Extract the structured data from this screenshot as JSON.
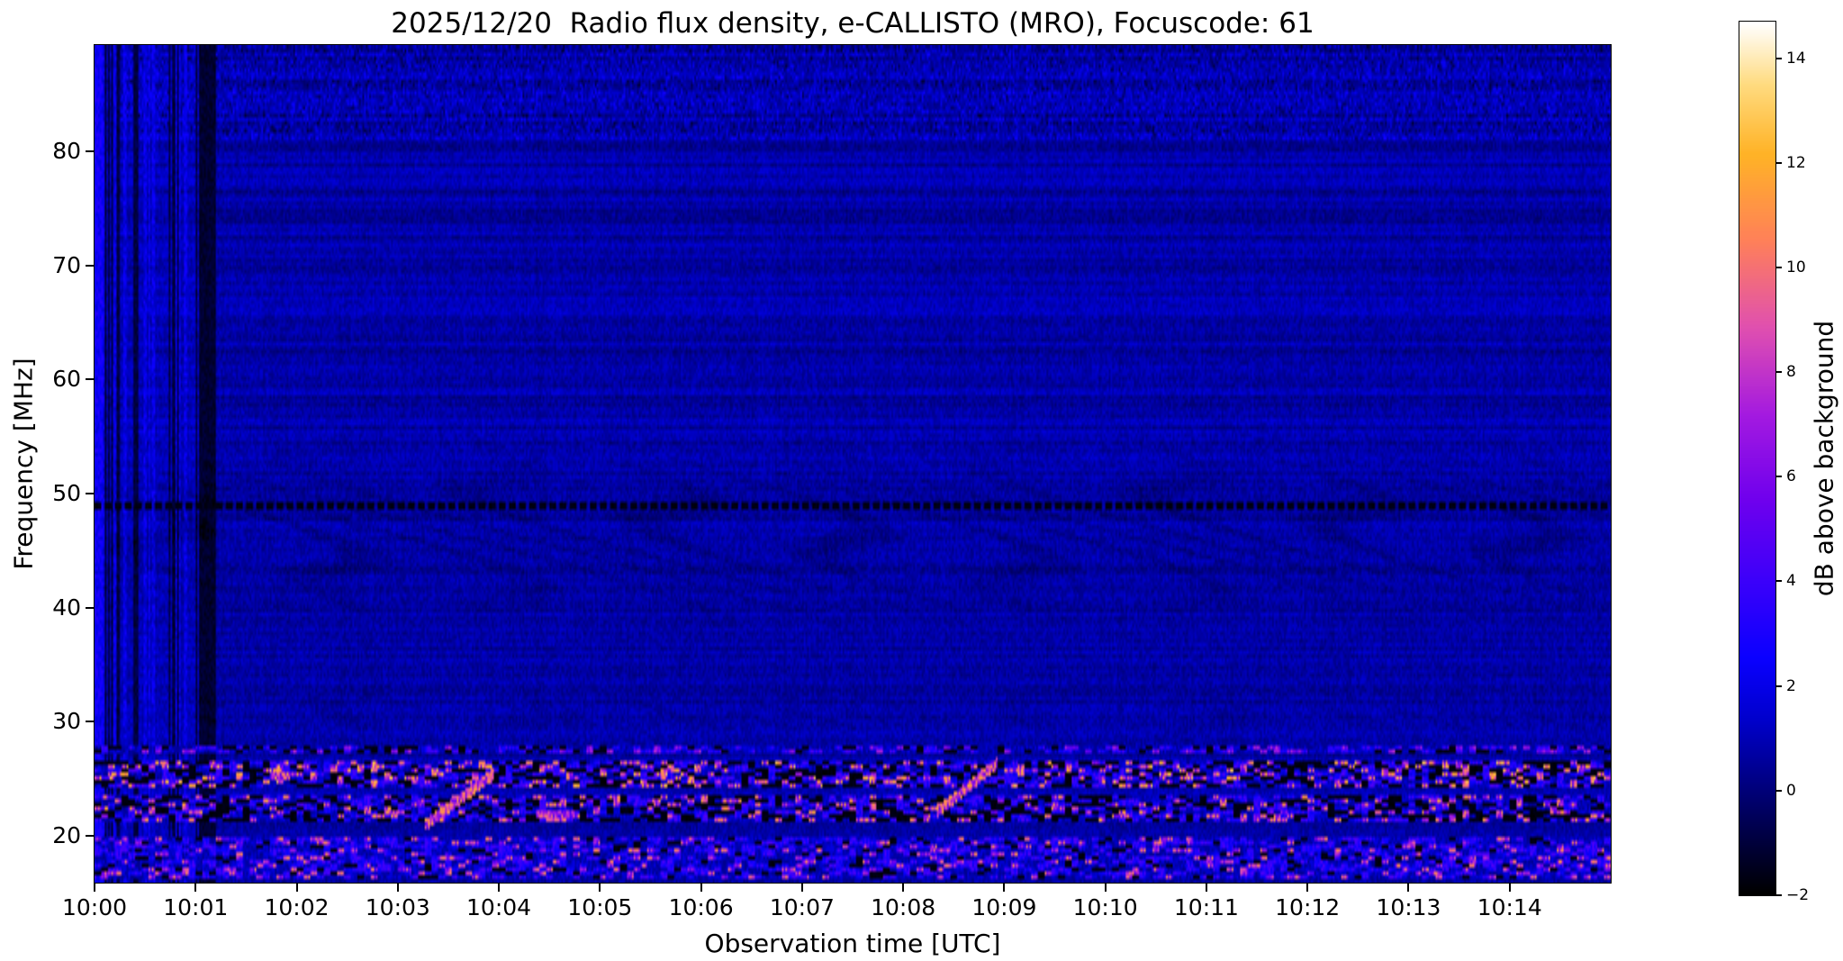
{
  "chart_data": {
    "type": "heatmap",
    "title": "2025/12/20  Radio flux density, e-CALLISTO (MRO), Focuscode: 61",
    "xlabel": "Observation time [UTC]",
    "ylabel": "Frequency [MHz]",
    "colorbar_label": "dB above background",
    "x_range_seconds": [
      0,
      900
    ],
    "x_ticks": [
      {
        "label": "10:00",
        "seconds": 0
      },
      {
        "label": "10:01",
        "seconds": 60
      },
      {
        "label": "10:02",
        "seconds": 120
      },
      {
        "label": "10:03",
        "seconds": 180
      },
      {
        "label": "10:04",
        "seconds": 240
      },
      {
        "label": "10:05",
        "seconds": 300
      },
      {
        "label": "10:06",
        "seconds": 360
      },
      {
        "label": "10:07",
        "seconds": 420
      },
      {
        "label": "10:08",
        "seconds": 480
      },
      {
        "label": "10:09",
        "seconds": 540
      },
      {
        "label": "10:10",
        "seconds": 600
      },
      {
        "label": "10:11",
        "seconds": 660
      },
      {
        "label": "10:12",
        "seconds": 720
      },
      {
        "label": "10:13",
        "seconds": 780
      },
      {
        "label": "10:14",
        "seconds": 840
      }
    ],
    "y_range_mhz": [
      15.9,
      89.3
    ],
    "y_ticks": [
      {
        "label": "20",
        "value": 20
      },
      {
        "label": "30",
        "value": 30
      },
      {
        "label": "40",
        "value": 40
      },
      {
        "label": "50",
        "value": 50
      },
      {
        "label": "60",
        "value": 60
      },
      {
        "label": "70",
        "value": 70
      },
      {
        "label": "80",
        "value": 80
      }
    ],
    "colorbar_range_db": [
      -2,
      14.7
    ],
    "colorbar_ticks": [
      {
        "label": "14",
        "value": 14
      },
      {
        "label": "12",
        "value": 12
      },
      {
        "label": "10",
        "value": 10
      },
      {
        "label": "8",
        "value": 8
      },
      {
        "label": "6",
        "value": 6
      },
      {
        "label": "4",
        "value": 4
      },
      {
        "label": "2",
        "value": 2
      },
      {
        "label": "0",
        "value": 0
      },
      {
        "label": "−2",
        "value": -2
      }
    ],
    "colormap": {
      "name": "gnuplot2-like",
      "stops": [
        {
          "x": 0.0,
          "color": "#000000"
        },
        {
          "x": 0.1,
          "color": "#000066"
        },
        {
          "x": 0.2,
          "color": "#0000cc"
        },
        {
          "x": 0.27,
          "color": "#0a00ff"
        },
        {
          "x": 0.36,
          "color": "#3c00fa"
        },
        {
          "x": 0.45,
          "color": "#6e00ee"
        },
        {
          "x": 0.55,
          "color": "#a41ae0"
        },
        {
          "x": 0.65,
          "color": "#e050b0"
        },
        {
          "x": 0.75,
          "color": "#ff8059"
        },
        {
          "x": 0.85,
          "color": "#ffb326"
        },
        {
          "x": 0.93,
          "color": "#ffdb80"
        },
        {
          "x": 1.0,
          "color": "#ffffff"
        }
      ]
    },
    "background_db": {
      "typical": 0.7,
      "noise_spread": 1.1
    },
    "features": [
      {
        "type": "stripes",
        "name": "startup-interference-stripes",
        "time_s": [
          0,
          72
        ],
        "description": "alternating bright blue and black vertical stripes at start of observation"
      },
      {
        "type": "ripples",
        "name": "ionospheric-fringe-ripples",
        "freq_mhz": [
          37,
          55
        ],
        "center_mhz": 46.5,
        "depth_db": 0.55,
        "description": "faint wavy darker fringes between 37 and 55 MHz"
      },
      {
        "type": "ripples",
        "name": "fringe-ripples-low",
        "freq_mhz": [
          28,
          33
        ],
        "center_mhz": 30.5,
        "depth_db": 0.3,
        "description": "weaker wavy fringes near 30 MHz"
      },
      {
        "type": "dash_line",
        "name": "dark-channel-49mhz",
        "freq_mhz": [
          48.45,
          49.15
        ],
        "description": "dashed black horizontal line near 48.8 MHz"
      },
      {
        "type": "speckle_band",
        "name": "rfi-band-27mhz",
        "freq_mhz": [
          27.0,
          27.7
        ],
        "black": 0.22,
        "dim": 0.45,
        "mid": 0.22,
        "peak_db": 8,
        "description": "narrow speckled RFI line near 27 MHz"
      },
      {
        "type": "speckle_band",
        "name": "rfi-band-25mhz",
        "freq_mhz": [
          24.1,
          26.4
        ],
        "black": 0.3,
        "dim": 0.22,
        "mid": 0.28,
        "peak_db": 13,
        "description": "strong speckled RFI band 24-26 MHz with black gaps and bright pink bursts"
      },
      {
        "type": "speckle_band",
        "name": "rfi-band-22mhz",
        "freq_mhz": [
          21.2,
          23.4
        ],
        "black": 0.33,
        "dim": 0.28,
        "mid": 0.24,
        "peak_db": 12,
        "description": "speckled RFI band 21-23 MHz"
      },
      {
        "type": "speckle_band",
        "name": "rfi-band-18mhz",
        "freq_mhz": [
          16.0,
          19.8
        ],
        "black": 0.1,
        "dim": 0.45,
        "mid": 0.33,
        "peak_db": 11,
        "description": "bright blue RFI band 16-20 MHz with pink speckles"
      },
      {
        "type": "drift",
        "name": "drifting-burst-1003",
        "time_s": [
          196,
          236
        ],
        "freq_mhz": [
          20.8,
          25.3
        ],
        "peak_db": 12,
        "description": "rising diagonal bright streak around 10:03"
      },
      {
        "type": "drift",
        "name": "drifting-burst-1008",
        "time_s": [
          500,
          535
        ],
        "freq_mhz": [
          22.0,
          26.2
        ],
        "peak_db": 12,
        "description": "rising diagonal bright streak around 10:08"
      },
      {
        "type": "burst",
        "name": "burst-1004",
        "time_s": [
          262,
          284
        ],
        "freq_mhz": [
          21.4,
          22.1
        ],
        "peak_db": 10,
        "description": "short bright horizontal burst near 10:04 at 21.7 MHz"
      }
    ]
  }
}
